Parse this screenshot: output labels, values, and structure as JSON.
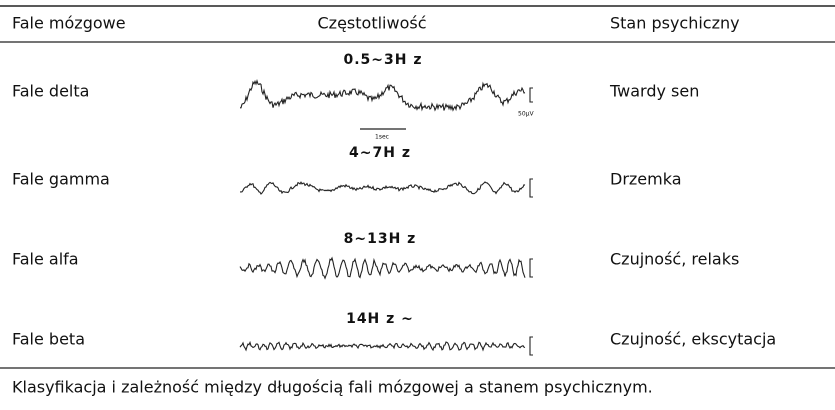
{
  "header": [
    "Fale mózgowe",
    "Częstotliwość",
    "Stan psychiczny"
  ],
  "rows": [
    {
      "name": "Fale delta",
      "frequency": "0.5~3H z",
      "state": "Twardy sen"
    },
    {
      "name": "Fale gamma",
      "frequency": "4~7H z",
      "state": "Drzemka"
    },
    {
      "name": "Fale alfa",
      "frequency": "8~13H z",
      "state": "Czujność, relaks"
    },
    {
      "name": "Fale beta",
      "frequency": "14H z ~",
      "state": "Czujność, ekscytacja"
    }
  ],
  "scale": {
    "time": "1sec",
    "amplitude": "50μV"
  },
  "caption": "Klasyfikacja i zależność między długością fali mózgowej a stanem psychicznym."
}
